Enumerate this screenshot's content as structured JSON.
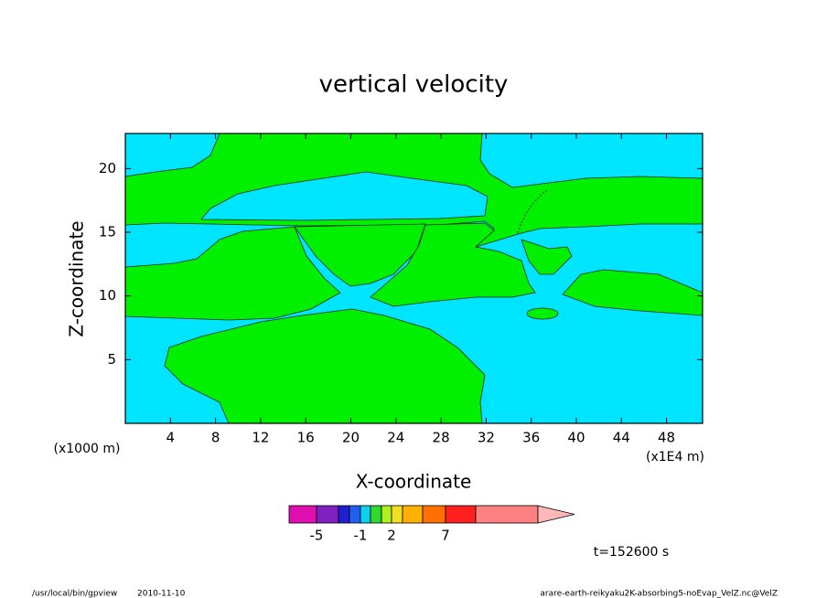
{
  "chart_data": {
    "type": "contour",
    "title": "vertical velocity",
    "xlabel": "X-coordinate",
    "ylabel": "Z-coordinate",
    "x_unit_left": "(x1000 m)",
    "x_unit_right": "(x1E4 m)",
    "xlim": [
      0,
      51.2
    ],
    "ylim": [
      0,
      22.75
    ],
    "xticks": [
      4,
      8,
      12,
      16,
      20,
      24,
      28,
      32,
      36,
      40,
      44,
      48
    ],
    "yticks": [
      5,
      10,
      15,
      20
    ],
    "field_colors": [
      "#00e5ff",
      "#00f000"
    ],
    "colorbar": {
      "colors": [
        "#e010b0",
        "#8020c0",
        "#2020d0",
        "#2060f0",
        "#10d0f0",
        "#30d830",
        "#b0f020",
        "#f0e020",
        "#ffb000",
        "#ff7000",
        "#ff2020",
        "#ff8080",
        "#ffb8b8"
      ],
      "labels": [
        -5,
        -1,
        2,
        7
      ]
    },
    "annotation": "t=152600 s",
    "footer_left": [
      "/usr/local/bin/gpview",
      "2010-11-10"
    ],
    "footer_right": "arare-earth-reikyaku2K-absorbing5-noEvap_VelZ.nc@VelZ"
  }
}
